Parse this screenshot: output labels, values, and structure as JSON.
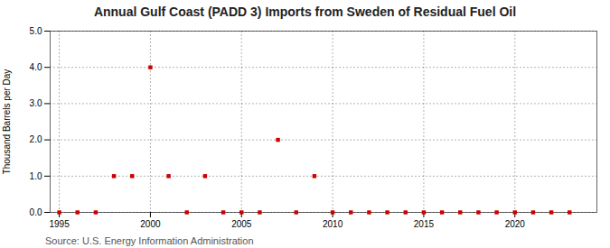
{
  "chart_data": {
    "type": "scatter",
    "title": "Annual Gulf Coast (PADD 3) Imports from Sweden of Residual Fuel Oil",
    "ylabel": "Thousand Barrels per Day",
    "source": "Source: U.S. Energy Information Administration",
    "x": [
      1995,
      1996,
      1997,
      1998,
      1999,
      2000,
      2001,
      2002,
      2003,
      2004,
      2005,
      2006,
      2007,
      2008,
      2009,
      2010,
      2011,
      2012,
      2013,
      2014,
      2015,
      2016,
      2017,
      2018,
      2019,
      2020,
      2021,
      2022,
      2023
    ],
    "values": [
      0.0,
      0.0,
      0.0,
      1.0,
      1.0,
      4.0,
      1.0,
      0.0,
      1.0,
      0.0,
      0.0,
      0.0,
      2.0,
      0.0,
      1.0,
      0.0,
      0.0,
      0.0,
      0.0,
      0.0,
      0.0,
      0.0,
      0.0,
      0.0,
      0.0,
      0.0,
      0.0,
      0.0,
      0.0
    ],
    "color": "#cc0000",
    "marker": "square",
    "xlim": [
      1994.5,
      2024.5
    ],
    "ylim": [
      0.0,
      5.0
    ],
    "xticks": [
      1995,
      2000,
      2005,
      2010,
      2015,
      2020
    ],
    "yticks": [
      {
        "value": 0,
        "label": "0.0"
      },
      {
        "value": 1,
        "label": "1.0"
      },
      {
        "value": 2,
        "label": "2.0"
      },
      {
        "value": 3,
        "label": "3.0"
      },
      {
        "value": 4,
        "label": "4.0"
      },
      {
        "value": 5,
        "label": "5.0"
      }
    ],
    "grid": true
  }
}
